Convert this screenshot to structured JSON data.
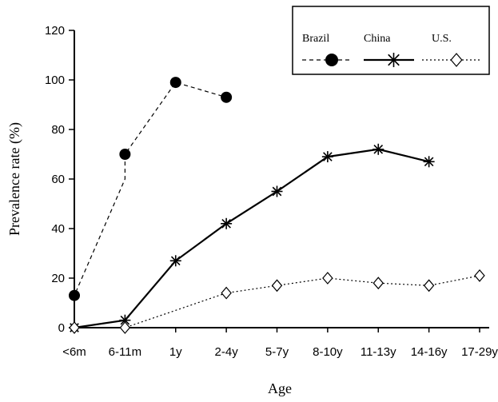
{
  "chart_data": {
    "type": "line",
    "xlabel": "Age",
    "ylabel": "Prevalence rate (%)",
    "ylim": [
      0,
      120
    ],
    "yticks": [
      0,
      20,
      40,
      60,
      80,
      100,
      120
    ],
    "categories": [
      "<6m",
      "6-11m",
      "1y",
      "2-4y",
      "5-7y",
      "8-10y",
      "11-13y",
      "14-16y",
      "17-29y"
    ],
    "legend_position": "top-right",
    "grid": false,
    "series": [
      {
        "name": "Brazil",
        "marker": "filled-circle",
        "line_style": "dashed",
        "points": [
          {
            "x": "<6m",
            "y": 0
          },
          {
            "x": "<6m",
            "y": 13
          },
          {
            "x": "6-11m",
            "y": 60
          },
          {
            "x": "6-11m",
            "y": 70
          },
          {
            "x": "1y",
            "y": 99
          },
          {
            "x": "2-4y",
            "y": 93
          }
        ]
      },
      {
        "name": "China",
        "marker": "asterisk",
        "line_style": "solid",
        "points": [
          {
            "x": "<6m",
            "y": 0
          },
          {
            "x": "6-11m",
            "y": 3
          },
          {
            "x": "1y",
            "y": 27
          },
          {
            "x": "2-4y",
            "y": 42
          },
          {
            "x": "5-7y",
            "y": 55
          },
          {
            "x": "8-10y",
            "y": 69
          },
          {
            "x": "11-13y",
            "y": 72
          },
          {
            "x": "14-16y",
            "y": 67
          }
        ]
      },
      {
        "name": "U.S.",
        "marker": "open-diamond",
        "line_style": "dotted",
        "points": [
          {
            "x": "<6m",
            "y": 0
          },
          {
            "x": "6-11m",
            "y": 0
          },
          {
            "x": "1y",
            "y": 7
          },
          {
            "x": "2-4y",
            "y": 14
          },
          {
            "x": "5-7y",
            "y": 17
          },
          {
            "x": "8-10y",
            "y": 20
          },
          {
            "x": "11-13y",
            "y": 18
          },
          {
            "x": "14-16y",
            "y": 17
          },
          {
            "x": "17-29y",
            "y": 21
          }
        ]
      }
    ]
  }
}
